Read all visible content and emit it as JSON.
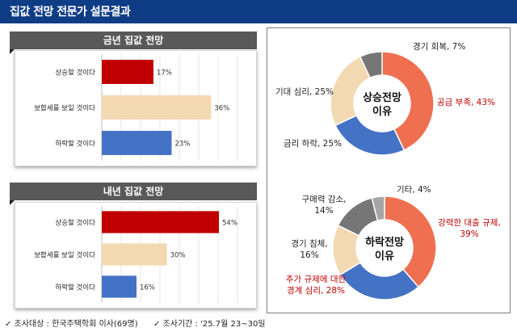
{
  "page": {
    "title": "집값 전망 전문가 설문결과"
  },
  "footer": {
    "left": "✓  조사대상 : 한국주택학회 이사(69명)",
    "right": "✓  조사기간 : '25.7월 23~30일"
  },
  "colors": {
    "header": "#0f3d85",
    "up": "#c00000",
    "flat": "#f3d9b1",
    "down": "#4472c4",
    "panel_title": "#595959",
    "donut_orange": "#ee7050",
    "donut_blue": "#4472c4",
    "donut_beige": "#f3d9b1",
    "donut_gray": "#767676",
    "donut_lightgray": "#a6a6a6",
    "red_label": "#c00000"
  },
  "chart_data": [
    {
      "type": "bar",
      "orientation": "horizontal",
      "title": "금년 집값 전망",
      "categories": [
        "상승할 것이다",
        "보합세를 보일 것이다",
        "하락할 것이다"
      ],
      "values": [
        17,
        36,
        23
      ],
      "value_labels": [
        "17%",
        "36%",
        "23%"
      ],
      "xlim": [
        0,
        50
      ]
    },
    {
      "type": "bar",
      "orientation": "horizontal",
      "title": "내년 집값 전망",
      "categories": [
        "상승할 것이다",
        "보합세를 보일 것이다",
        "하락할 것이다"
      ],
      "values": [
        54,
        30,
        16
      ],
      "value_labels": [
        "54%",
        "30%",
        "16%"
      ],
      "xlim": [
        0,
        70
      ]
    },
    {
      "type": "pie",
      "donut": true,
      "title": "상승전망 이유",
      "categories": [
        "공급 부족",
        "금리 하락",
        "기대 심리",
        "경기 회복"
      ],
      "values": [
        43,
        25,
        25,
        7
      ],
      "slice_labels": [
        "공급 부족, 43%",
        "금리 하락, 25%",
        "기대 심리, 25%",
        "경기 회복, 7%"
      ]
    },
    {
      "type": "pie",
      "donut": true,
      "title": "하락전망 이유",
      "categories": [
        "강력한 대출 규제",
        "추가 규제에 대한 경계 심리",
        "경기 침체",
        "구매력 감소",
        "기타"
      ],
      "values": [
        39,
        28,
        16,
        14,
        4
      ],
      "slice_labels": [
        "강력한 대출 규제, 39%",
        "추가 규제에 대한 경계 심리, 28%",
        "경기 침체, 16%",
        "구매력 감소, 14%",
        "기타, 4%"
      ]
    }
  ]
}
